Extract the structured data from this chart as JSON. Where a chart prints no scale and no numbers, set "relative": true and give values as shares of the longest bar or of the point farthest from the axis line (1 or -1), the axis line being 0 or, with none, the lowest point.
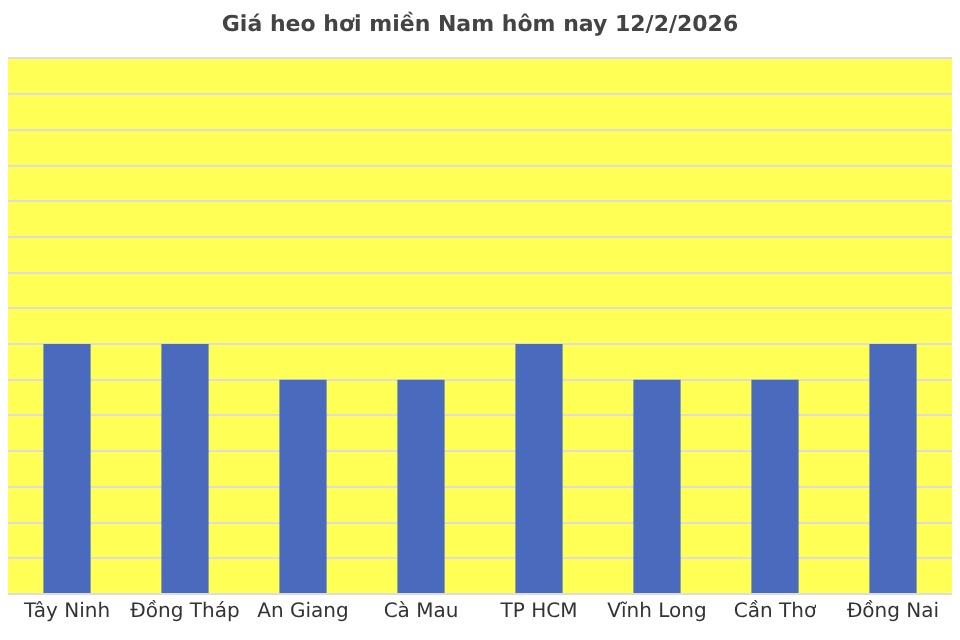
{
  "chart_data": {
    "type": "bar",
    "title": "Giá heo hơi miền Nam hôm nay 12/2/2026",
    "categories": [
      "Tây Ninh",
      "Đồng Tháp",
      "An Giang",
      "Cà Mau",
      "TP HCM",
      "Vĩnh Long",
      "Cần Thơ",
      "Đồng Nai"
    ],
    "values": [
      1,
      1,
      0.857,
      0.857,
      1,
      0.857,
      0.857,
      1
    ],
    "color": "#4a6bbd",
    "relative": true,
    "grid": "y",
    "legend": false
  }
}
